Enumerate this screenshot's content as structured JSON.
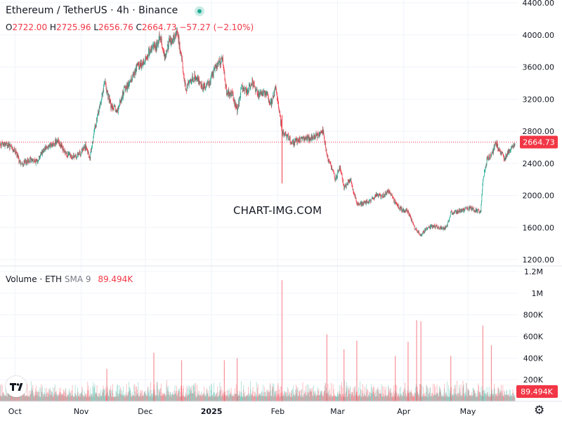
{
  "header": {
    "symbol": "Ethereum / TetherUS · 4h · Binance"
  },
  "ohlc": {
    "o_label": "O",
    "o": "2722.00",
    "h_label": "H",
    "h": "2725.96",
    "l_label": "L",
    "l": "2656.76",
    "c_label": "C",
    "c": "2664.73",
    "change": "−57.27 (−2.10%)"
  },
  "volume_legend": {
    "label": "Volume · ETH",
    "sma": "SMA 9",
    "value": "89.494K"
  },
  "watermark": "CHART-IMG.COM",
  "colors": {
    "up": "#22ab94",
    "down": "#f23645",
    "grid": "#f0f3fa",
    "text": "#131722"
  },
  "chart_data": [
    {
      "type": "candlestick",
      "title": "Ethereum / TetherUS · 4h · Binance",
      "interval": "4h",
      "y_ticks": [
        "1200.00",
        "1600.00",
        "2000.00",
        "2400.00",
        "2800.00",
        "3200.00",
        "3600.00",
        "4000.00",
        "4400.00"
      ],
      "y_tick_values": [
        1200,
        1600,
        2000,
        2400,
        2800,
        3200,
        3600,
        4000,
        4400
      ],
      "ylim": [
        1000,
        4400
      ],
      "x_ticks": [
        "Oct",
        "Nov",
        "Dec",
        "2025",
        "Feb",
        "Mar",
        "Apr",
        "May"
      ],
      "last_price": 2664.73,
      "last_price_label": "2664.73",
      "approx_close_path": [
        {
          "x": "2024-09-24",
          "y": 2640
        },
        {
          "x": "2024-09-27",
          "y": 2640
        },
        {
          "x": "2024-10-01",
          "y": 2550
        },
        {
          "x": "2024-10-04",
          "y": 2380
        },
        {
          "x": "2024-10-08",
          "y": 2450
        },
        {
          "x": "2024-10-11",
          "y": 2420
        },
        {
          "x": "2024-10-15",
          "y": 2600
        },
        {
          "x": "2024-10-18",
          "y": 2620
        },
        {
          "x": "2024-10-21",
          "y": 2700
        },
        {
          "x": "2024-10-24",
          "y": 2540
        },
        {
          "x": "2024-10-28",
          "y": 2470
        },
        {
          "x": "2024-10-31",
          "y": 2510
        },
        {
          "x": "2024-11-03",
          "y": 2610
        },
        {
          "x": "2024-11-05",
          "y": 2450
        },
        {
          "x": "2024-11-07",
          "y": 2780
        },
        {
          "x": "2024-11-10",
          "y": 3150
        },
        {
          "x": "2024-11-12",
          "y": 3400
        },
        {
          "x": "2024-11-15",
          "y": 3100
        },
        {
          "x": "2024-11-18",
          "y": 3050
        },
        {
          "x": "2024-11-21",
          "y": 3300
        },
        {
          "x": "2024-11-24",
          "y": 3420
        },
        {
          "x": "2024-11-27",
          "y": 3600
        },
        {
          "x": "2024-11-30",
          "y": 3650
        },
        {
          "x": "2024-12-03",
          "y": 3800
        },
        {
          "x": "2024-12-06",
          "y": 3850
        },
        {
          "x": "2024-12-08",
          "y": 4000
        },
        {
          "x": "2024-12-10",
          "y": 3720
        },
        {
          "x": "2024-12-12",
          "y": 3900
        },
        {
          "x": "2024-12-14",
          "y": 3950
        },
        {
          "x": "2024-12-16",
          "y": 4050
        },
        {
          "x": "2024-12-18",
          "y": 3700
        },
        {
          "x": "2024-12-20",
          "y": 3300
        },
        {
          "x": "2024-12-22",
          "y": 3450
        },
        {
          "x": "2024-12-25",
          "y": 3480
        },
        {
          "x": "2024-12-28",
          "y": 3350
        },
        {
          "x": "2024-12-31",
          "y": 3400
        },
        {
          "x": "2025-01-03",
          "y": 3600
        },
        {
          "x": "2025-01-06",
          "y": 3700
        },
        {
          "x": "2025-01-08",
          "y": 3300
        },
        {
          "x": "2025-01-11",
          "y": 3250
        },
        {
          "x": "2025-01-13",
          "y": 3050
        },
        {
          "x": "2025-01-15",
          "y": 3350
        },
        {
          "x": "2025-01-18",
          "y": 3300
        },
        {
          "x": "2025-01-20",
          "y": 3420
        },
        {
          "x": "2025-01-23",
          "y": 3250
        },
        {
          "x": "2025-01-26",
          "y": 3300
        },
        {
          "x": "2025-01-29",
          "y": 3150
        },
        {
          "x": "2025-01-31",
          "y": 3350
        },
        {
          "x": "2025-02-02",
          "y": 3000
        },
        {
          "x": "2025-02-03",
          "y": 2800
        },
        {
          "x": "2025-02-05",
          "y": 2750
        },
        {
          "x": "2025-02-08",
          "y": 2650
        },
        {
          "x": "2025-02-11",
          "y": 2700
        },
        {
          "x": "2025-02-14",
          "y": 2700
        },
        {
          "x": "2025-02-17",
          "y": 2720
        },
        {
          "x": "2025-02-20",
          "y": 2750
        },
        {
          "x": "2025-02-22",
          "y": 2820
        },
        {
          "x": "2025-02-24",
          "y": 2500
        },
        {
          "x": "2025-02-26",
          "y": 2350
        },
        {
          "x": "2025-02-28",
          "y": 2200
        },
        {
          "x": "2025-03-02",
          "y": 2350
        },
        {
          "x": "2025-03-04",
          "y": 2100
        },
        {
          "x": "2025-03-07",
          "y": 2200
        },
        {
          "x": "2025-03-10",
          "y": 1900
        },
        {
          "x": "2025-03-13",
          "y": 1900
        },
        {
          "x": "2025-03-16",
          "y": 1920
        },
        {
          "x": "2025-03-19",
          "y": 2000
        },
        {
          "x": "2025-03-22",
          "y": 1990
        },
        {
          "x": "2025-03-25",
          "y": 2060
        },
        {
          "x": "2025-03-28",
          "y": 1900
        },
        {
          "x": "2025-03-31",
          "y": 1820
        },
        {
          "x": "2025-04-03",
          "y": 1800
        },
        {
          "x": "2025-04-06",
          "y": 1600
        },
        {
          "x": "2025-04-09",
          "y": 1500
        },
        {
          "x": "2025-04-12",
          "y": 1600
        },
        {
          "x": "2025-04-15",
          "y": 1620
        },
        {
          "x": "2025-04-18",
          "y": 1590
        },
        {
          "x": "2025-04-21",
          "y": 1600
        },
        {
          "x": "2025-04-23",
          "y": 1780
        },
        {
          "x": "2025-04-26",
          "y": 1800
        },
        {
          "x": "2025-04-29",
          "y": 1810
        },
        {
          "x": "2025-05-02",
          "y": 1840
        },
        {
          "x": "2025-05-05",
          "y": 1810
        },
        {
          "x": "2025-05-07",
          "y": 1800
        },
        {
          "x": "2025-05-08",
          "y": 2200
        },
        {
          "x": "2025-05-10",
          "y": 2450
        },
        {
          "x": "2025-05-12",
          "y": 2500
        },
        {
          "x": "2025-05-14",
          "y": 2650
        },
        {
          "x": "2025-05-16",
          "y": 2560
        },
        {
          "x": "2025-05-18",
          "y": 2450
        },
        {
          "x": "2025-05-20",
          "y": 2550
        },
        {
          "x": "2025-05-22",
          "y": 2600
        },
        {
          "x": "2025-05-23",
          "y": 2665
        }
      ]
    },
    {
      "type": "bar",
      "title": "Volume · ETH",
      "y_ticks": [
        "200K",
        "400K",
        "600K",
        "800K",
        "1M",
        "1.2M"
      ],
      "y_tick_values": [
        200000,
        400000,
        600000,
        800000,
        1000000,
        1200000
      ],
      "ylim": [
        0,
        1200000
      ],
      "x_ticks": [
        "Oct",
        "Nov",
        "Dec",
        "2025",
        "Feb",
        "Mar",
        "Apr",
        "May"
      ],
      "last_volume_label": "89.494K",
      "volume_spikes": [
        {
          "x": "2024-11-13",
          "y": 300000
        },
        {
          "x": "2024-12-05",
          "y": 450000
        },
        {
          "x": "2024-12-18",
          "y": 380000
        },
        {
          "x": "2025-01-07",
          "y": 380000
        },
        {
          "x": "2025-01-13",
          "y": 400000
        },
        {
          "x": "2025-02-03",
          "y": 1120000
        },
        {
          "x": "2025-02-24",
          "y": 620000
        },
        {
          "x": "2025-03-04",
          "y": 480000
        },
        {
          "x": "2025-03-10",
          "y": 560000
        },
        {
          "x": "2025-03-28",
          "y": 420000
        },
        {
          "x": "2025-04-03",
          "y": 550000
        },
        {
          "x": "2025-04-07",
          "y": 750000
        },
        {
          "x": "2025-04-09",
          "y": 740000
        },
        {
          "x": "2025-04-23",
          "y": 420000
        },
        {
          "x": "2025-05-08",
          "y": 700000
        },
        {
          "x": "2025-05-12",
          "y": 520000
        }
      ]
    }
  ]
}
